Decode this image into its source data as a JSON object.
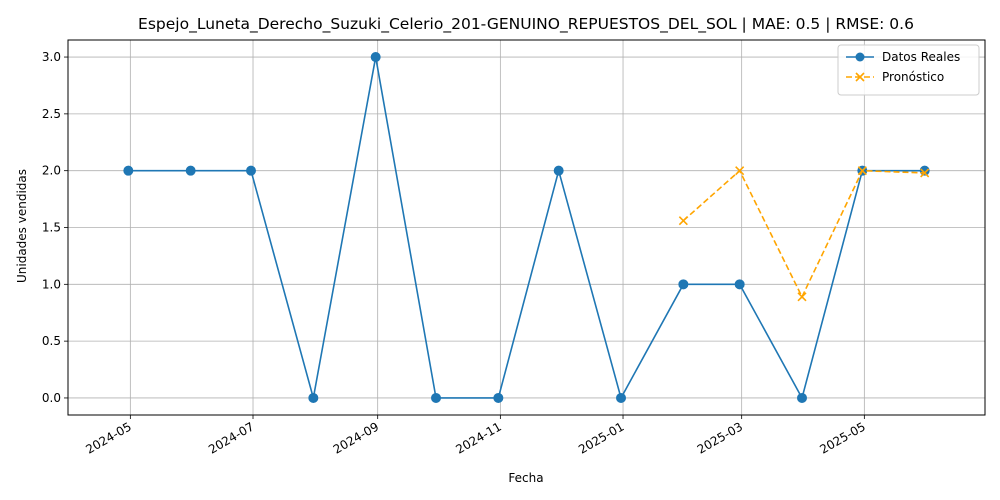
{
  "chart_data": {
    "type": "line",
    "title": "Espejo_Luneta_Derecho_Suzuki_Celerio_201-GENUINO_REPUESTOS_DEL_SOL | MAE: 0.5 | RMSE: 0.6",
    "xlabel": "Fecha",
    "ylabel": "Unidades vendidas",
    "ylim": [
      -0.15,
      3.15
    ],
    "xlim": [
      "2024-03-31",
      "2025-06-30"
    ],
    "grid": true,
    "legend_position": "top-right",
    "x_ticks": [
      "2024-05-01",
      "2024-07-01",
      "2024-09-01",
      "2024-11-01",
      "2025-01-01",
      "2025-03-01",
      "2025-05-01"
    ],
    "x_tick_labels": [
      "2024-05",
      "2024-07",
      "2024-09",
      "2024-11",
      "2025-01",
      "2025-03",
      "2025-05"
    ],
    "y_ticks": [
      0.0,
      0.5,
      1.0,
      1.5,
      2.0,
      2.5,
      3.0
    ],
    "y_tick_labels": [
      "0.0",
      "0.5",
      "1.0",
      "1.5",
      "2.0",
      "2.5",
      "3.0"
    ],
    "series": [
      {
        "name": "Datos Reales",
        "color": "#1f77b4",
        "style": "solid",
        "marker": "circle",
        "x": [
          "2024-04-30",
          "2024-05-31",
          "2024-06-30",
          "2024-07-31",
          "2024-08-31",
          "2024-09-30",
          "2024-10-31",
          "2024-11-30",
          "2024-12-31",
          "2025-01-31",
          "2025-02-28",
          "2025-03-31",
          "2025-04-30",
          "2025-05-31"
        ],
        "values": [
          2,
          2,
          2,
          0,
          3,
          0,
          0,
          2,
          0,
          1,
          1,
          0,
          2,
          2
        ]
      },
      {
        "name": "Pronóstico",
        "color": "#ffa500",
        "style": "dashed",
        "marker": "x",
        "x": [
          "2025-01-31",
          "2025-02-28",
          "2025-03-31",
          "2025-04-30",
          "2025-05-31"
        ],
        "values": [
          1.56,
          2.0,
          0.89,
          2.0,
          1.98
        ]
      }
    ]
  }
}
